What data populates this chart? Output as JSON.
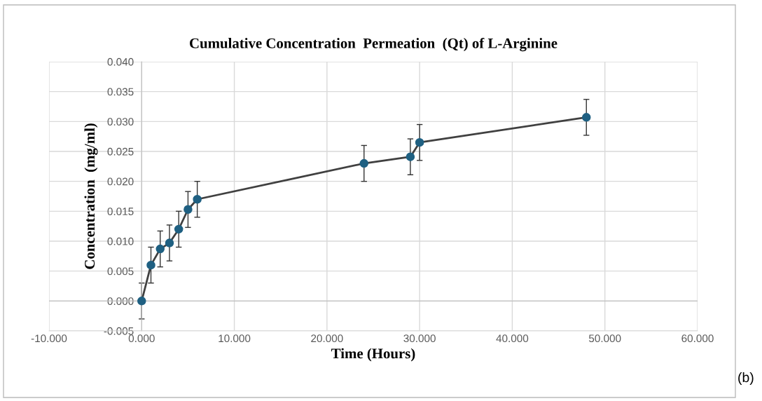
{
  "chart_data": {
    "type": "line",
    "title": "Cumulative Concentration  Permeation  (Qt) of L-Arginine",
    "xlabel": "Time (Hours)",
    "ylabel": "Concentration  (mg/ml)",
    "x": [
      0,
      1,
      2,
      3,
      4,
      5,
      6,
      24,
      29,
      30,
      48
    ],
    "series": [
      {
        "color": "#404040",
        "colors": [
          "#1f6082",
          "#1f6082",
          "#1f6082",
          "#1f6082",
          "#1f6082",
          "#1f6082",
          "#1f6082",
          "#1f6082",
          "#1f6082",
          "#1f6082",
          "#1f6082"
        ],
        "values": [
          0.0,
          0.006,
          0.0087,
          0.0097,
          0.012,
          0.0153,
          0.017,
          0.023,
          0.0241,
          0.0265,
          0.0307
        ],
        "errors": [
          0.003,
          0.003,
          0.003,
          0.003,
          0.003,
          0.003,
          0.003,
          0.003,
          0.003,
          0.003,
          0.003
        ]
      }
    ],
    "xlim": [
      -10,
      60
    ],
    "ylim": [
      -0.005,
      0.04
    ],
    "xticks": [
      {
        "value": -10,
        "label": "-10.000"
      },
      {
        "value": 0,
        "label": "0.000"
      },
      {
        "value": 10,
        "label": "10.000"
      },
      {
        "value": 20,
        "label": "20.000"
      },
      {
        "value": 30,
        "label": "30.000"
      },
      {
        "value": 40,
        "label": "40.000"
      },
      {
        "value": 50,
        "label": "50.000"
      },
      {
        "value": 60,
        "label": "60.000"
      }
    ],
    "yticks": [
      {
        "value": -0.005,
        "label": "-0.005"
      },
      {
        "value": 0,
        "label": "0.000"
      },
      {
        "value": 0.005,
        "label": "0.005"
      },
      {
        "value": 0.01,
        "label": "0.010"
      },
      {
        "value": 0.015,
        "label": "0.015"
      },
      {
        "value": 0.02,
        "label": "0.020"
      },
      {
        "value": 0.025,
        "label": "0.025"
      },
      {
        "value": 0.03,
        "label": "0.030"
      },
      {
        "value": 0.035,
        "label": "0.035"
      },
      {
        "value": 0.04,
        "label": "0.040"
      }
    ],
    "grid": true,
    "marker": "circle",
    "line_style": "solid",
    "legend": false,
    "annotations": [
      "(b)"
    ]
  }
}
